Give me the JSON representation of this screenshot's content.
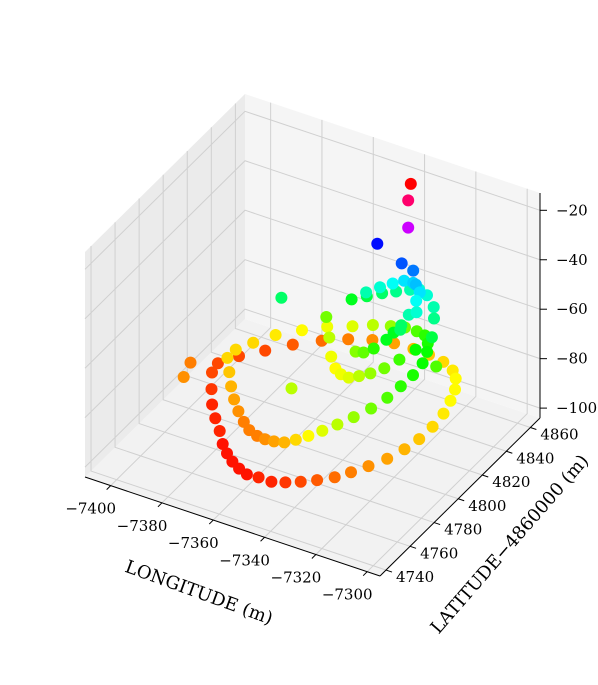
{
  "chart_data": {
    "type": "scatter",
    "projection": "3d",
    "title": "",
    "xlabel": "LONGITUDE (m)",
    "ylabel": "LATITUDE−4860000 (m)",
    "zlabel": "",
    "xlim": [
      -7410,
      -7295
    ],
    "ylim": [
      4735,
      4868
    ],
    "zlim": [
      -104,
      -13
    ],
    "x_ticks": [
      {
        "value": -7400,
        "label": "−7400"
      },
      {
        "value": -7380,
        "label": "−7380"
      },
      {
        "value": -7360,
        "label": "−7360"
      },
      {
        "value": -7340,
        "label": "−7340"
      },
      {
        "value": -7320,
        "label": "−7320"
      },
      {
        "value": -7300,
        "label": "−7300"
      }
    ],
    "y_ticks": [
      {
        "value": 4740,
        "label": "4740"
      },
      {
        "value": 4760,
        "label": "4760"
      },
      {
        "value": 4780,
        "label": "4780"
      },
      {
        "value": 4800,
        "label": "4800"
      },
      {
        "value": 4820,
        "label": "4820"
      },
      {
        "value": 4840,
        "label": "4840"
      },
      {
        "value": 4860,
        "label": "4860"
      }
    ],
    "z_ticks": [
      {
        "value": -20,
        "label": "−20"
      },
      {
        "value": -40,
        "label": "−40"
      },
      {
        "value": -60,
        "label": "−60"
      },
      {
        "value": -80,
        "label": "−80"
      },
      {
        "value": -100,
        "label": "−100"
      }
    ],
    "grid": true,
    "colormap": "hsv",
    "color_by": "z",
    "color_range": [
      -100,
      -15
    ],
    "series": [
      {
        "x": [
          -7398,
          -7394,
          -7390,
          -7385,
          -7380,
          -7376,
          -7372,
          -7368,
          -7364,
          -7360,
          -7355,
          -7350,
          -7345,
          -7340,
          -7335,
          -7330,
          -7326,
          -7322,
          -7318,
          -7315,
          -7313,
          -7312,
          -7312,
          -7313,
          -7315,
          -7318,
          -7322,
          -7328,
          -7335,
          -7342,
          -7350,
          -7358,
          -7366,
          -7374,
          -7382,
          -7389,
          -7395,
          -7399,
          -7392,
          -7388,
          -7384,
          -7380,
          -7376,
          -7372,
          -7368,
          -7364,
          -7360,
          -7356,
          -7352,
          -7348,
          -7344,
          -7340,
          -7336,
          -7332,
          -7328,
          -7325,
          -7323,
          -7322,
          -7322,
          -7324,
          -7327,
          -7331,
          -7336,
          -7342,
          -7348,
          -7355,
          -7362,
          -7370,
          -7377,
          -7384,
          -7389,
          -7392,
          -7360,
          -7355,
          -7350,
          -7345,
          -7340,
          -7336,
          -7332,
          -7328,
          -7326,
          -7324,
          -7328,
          -7332,
          -7336,
          -7340,
          -7344,
          -7348,
          -7352,
          -7356,
          -7360,
          -7364,
          -7368,
          -7352,
          -7348,
          -7344,
          -7340,
          -7336,
          -7332,
          -7330,
          -7334,
          -7338,
          -7342,
          -7346,
          -7350,
          -7340,
          -7336,
          -7334,
          -7332,
          -7333,
          -7335,
          -7338,
          -7405,
          -7402,
          -7360,
          -7378,
          -7320,
          -7350,
          -7337,
          -7337,
          -7336
        ],
        "y": [
          4815,
          4806,
          4798,
          4790,
          4783,
          4777,
          4772,
          4768,
          4765,
          4763,
          4762,
          4762,
          4763,
          4765,
          4768,
          4772,
          4777,
          4783,
          4790,
          4798,
          4806,
          4815,
          4824,
          4832,
          4840,
          4847,
          4853,
          4858,
          4861,
          4863,
          4864,
          4863,
          4860,
          4855,
          4848,
          4840,
          4831,
          4822,
          4815,
          4808,
          4801,
          4795,
          4790,
          4786,
          4782,
          4780,
          4778,
          4777,
          4777,
          4778,
          4780,
          4783,
          4787,
          4792,
          4798,
          4805,
          4812,
          4820,
          4828,
          4836,
          4843,
          4849,
          4853,
          4856,
          4857,
          4857,
          4855,
          4851,
          4845,
          4838,
          4830,
          4822,
          4850,
          4852,
          4854,
          4855,
          4856,
          4855,
          4853,
          4850,
          4846,
          4840,
          4835,
          4830,
          4826,
          4823,
          4822,
          4822,
          4824,
          4828,
          4833,
          4840,
          4846,
          4845,
          4848,
          4850,
          4851,
          4850,
          4847,
          4840,
          4835,
          4832,
          4830,
          4830,
          4832,
          4849,
          4850,
          4848,
          4844,
          4840,
          4838,
          4838,
          4812,
          4800,
          4800,
          4830,
          4835,
          4850,
          4848,
          4848,
          4848
        ],
        "z": [
          -96,
          -97,
          -98,
          -98,
          -98,
          -99,
          -99,
          -99,
          -99,
          -99,
          -98,
          -98,
          -97,
          -96,
          -95,
          -94,
          -93,
          -92,
          -91,
          -90,
          -89,
          -88,
          -87,
          -86,
          -86,
          -86,
          -87,
          -88,
          -89,
          -90,
          -91,
          -92,
          -93,
          -94,
          -95,
          -96,
          -96,
          -96,
          -88,
          -89,
          -90,
          -91,
          -92,
          -93,
          -93,
          -93,
          -92,
          -91,
          -90,
          -88,
          -86,
          -84,
          -82,
          -80,
          -78,
          -76,
          -74,
          -73,
          -72,
          -72,
          -73,
          -74,
          -76,
          -78,
          -80,
          -82,
          -84,
          -85,
          -86,
          -87,
          -88,
          -88,
          -70,
          -68,
          -66,
          -64,
          -62,
          -60,
          -60,
          -62,
          -64,
          -68,
          -72,
          -75,
          -78,
          -80,
          -82,
          -84,
          -85,
          -86,
          -85,
          -82,
          -78,
          -62,
          -60,
          -58,
          -56,
          -55,
          -56,
          -60,
          -66,
          -70,
          -74,
          -77,
          -79,
          -48,
          -50,
          -54,
          -58,
          -62,
          -66,
          -70,
          -93,
          -92,
          -82,
          -66,
          -76,
          -44,
          -32,
          -21,
          -14
        ]
      }
    ]
  }
}
